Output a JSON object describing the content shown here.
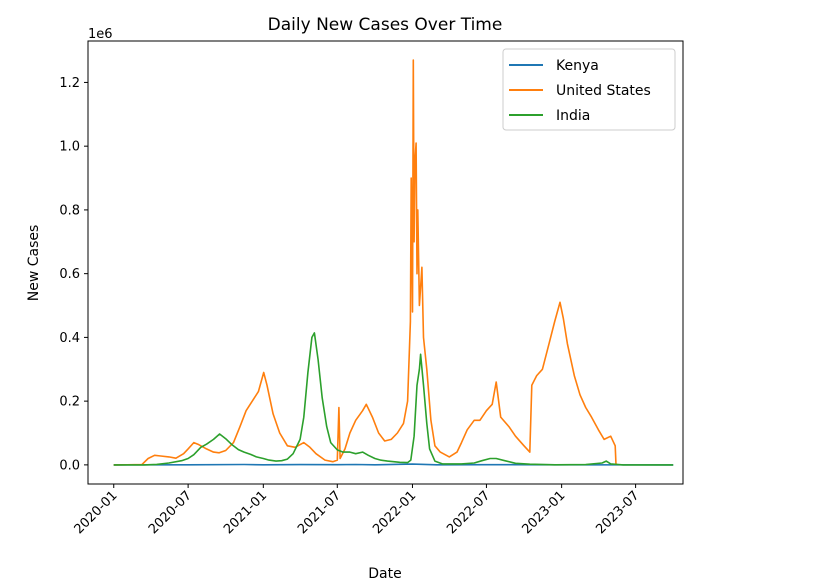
{
  "chart_data": {
    "type": "line",
    "title": "Daily New Cases Over Time",
    "xlabel": "Date",
    "ylabel": "New Cases",
    "y_offset_text": "1e6",
    "xlim": [
      "2019-10-30",
      "2023-10-25"
    ],
    "ylim": [
      -60000,
      1330000
    ],
    "x_ticks": [
      "2020-01",
      "2020-07",
      "2021-01",
      "2021-07",
      "2022-01",
      "2022-07",
      "2023-01",
      "2023-07"
    ],
    "y_ticks": [
      {
        "value": 0,
        "label": "0.0"
      },
      {
        "value": 200000,
        "label": "0.2"
      },
      {
        "value": 400000,
        "label": "0.4"
      },
      {
        "value": 600000,
        "label": "0.6"
      },
      {
        "value": 800000,
        "label": "0.8"
      },
      {
        "value": 1000000,
        "label": "1.0"
      },
      {
        "value": 1200000,
        "label": "1.2"
      }
    ],
    "grid": false,
    "legend_position": "top-right",
    "series": [
      {
        "name": "Kenya",
        "color": "#1f77b4",
        "points": [
          [
            "2020-01-01",
            0
          ],
          [
            "2020-07-01",
            300
          ],
          [
            "2020-11-15",
            1200
          ],
          [
            "2021-01-01",
            200
          ],
          [
            "2021-04-01",
            1000
          ],
          [
            "2021-07-01",
            500
          ],
          [
            "2021-08-15",
            1200
          ],
          [
            "2021-10-01",
            200
          ],
          [
            "2022-01-01",
            2500
          ],
          [
            "2022-03-01",
            100
          ],
          [
            "2022-07-01",
            500
          ],
          [
            "2023-01-01",
            100
          ],
          [
            "2023-10-01",
            0
          ]
        ]
      },
      {
        "name": "United States",
        "color": "#ff7f0e",
        "points": [
          [
            "2020-01-01",
            0
          ],
          [
            "2020-03-10",
            1000
          ],
          [
            "2020-03-25",
            20000
          ],
          [
            "2020-04-10",
            30000
          ],
          [
            "2020-04-25",
            28000
          ],
          [
            "2020-05-15",
            25000
          ],
          [
            "2020-06-01",
            21000
          ],
          [
            "2020-06-20",
            35000
          ],
          [
            "2020-07-01",
            50000
          ],
          [
            "2020-07-15",
            70000
          ],
          [
            "2020-07-25",
            65000
          ],
          [
            "2020-08-15",
            50000
          ],
          [
            "2020-09-01",
            40000
          ],
          [
            "2020-09-15",
            38000
          ],
          [
            "2020-10-01",
            45000
          ],
          [
            "2020-10-20",
            70000
          ],
          [
            "2020-11-05",
            120000
          ],
          [
            "2020-11-20",
            170000
          ],
          [
            "2020-12-05",
            200000
          ],
          [
            "2020-12-20",
            230000
          ],
          [
            "2021-01-02",
            290000
          ],
          [
            "2021-01-10",
            250000
          ],
          [
            "2021-01-25",
            160000
          ],
          [
            "2021-02-10",
            100000
          ],
          [
            "2021-03-01",
            60000
          ],
          [
            "2021-03-20",
            55000
          ],
          [
            "2021-04-10",
            70000
          ],
          [
            "2021-04-25",
            55000
          ],
          [
            "2021-05-10",
            35000
          ],
          [
            "2021-06-01",
            15000
          ],
          [
            "2021-06-20",
            10000
          ],
          [
            "2021-07-01",
            15000
          ],
          [
            "2021-07-05",
            180000
          ],
          [
            "2021-07-08",
            20000
          ],
          [
            "2021-07-20",
            50000
          ],
          [
            "2021-08-01",
            100000
          ],
          [
            "2021-08-15",
            140000
          ],
          [
            "2021-09-01",
            170000
          ],
          [
            "2021-09-10",
            190000
          ],
          [
            "2021-09-25",
            150000
          ],
          [
            "2021-10-10",
            100000
          ],
          [
            "2021-10-25",
            75000
          ],
          [
            "2021-11-10",
            80000
          ],
          [
            "2021-11-25",
            100000
          ],
          [
            "2021-12-10",
            130000
          ],
          [
            "2021-12-20",
            200000
          ],
          [
            "2021-12-27",
            450000
          ],
          [
            "2021-12-29",
            900000
          ],
          [
            "2022-01-01",
            480000
          ],
          [
            "2022-01-03",
            1270000
          ],
          [
            "2022-01-05",
            700000
          ],
          [
            "2022-01-07",
            950000
          ],
          [
            "2022-01-10",
            1010000
          ],
          [
            "2022-01-12",
            600000
          ],
          [
            "2022-01-14",
            800000
          ],
          [
            "2022-01-18",
            500000
          ],
          [
            "2022-01-24",
            620000
          ],
          [
            "2022-01-28",
            400000
          ],
          [
            "2022-02-05",
            300000
          ],
          [
            "2022-02-15",
            140000
          ],
          [
            "2022-02-25",
            60000
          ],
          [
            "2022-03-10",
            40000
          ],
          [
            "2022-04-01",
            25000
          ],
          [
            "2022-04-20",
            40000
          ],
          [
            "2022-05-01",
            70000
          ],
          [
            "2022-05-15",
            110000
          ],
          [
            "2022-06-01",
            140000
          ],
          [
            "2022-06-15",
            140000
          ],
          [
            "2022-07-01",
            170000
          ],
          [
            "2022-07-15",
            190000
          ],
          [
            "2022-07-25",
            260000
          ],
          [
            "2022-08-05",
            150000
          ],
          [
            "2022-08-25",
            120000
          ],
          [
            "2022-09-10",
            90000
          ],
          [
            "2022-10-01",
            60000
          ],
          [
            "2022-10-15",
            40000
          ],
          [
            "2022-10-20",
            250000
          ],
          [
            "2022-11-01",
            280000
          ],
          [
            "2022-11-15",
            300000
          ],
          [
            "2022-12-01",
            380000
          ],
          [
            "2022-12-15",
            450000
          ],
          [
            "2022-12-28",
            510000
          ],
          [
            "2023-01-05",
            460000
          ],
          [
            "2023-01-15",
            380000
          ],
          [
            "2023-02-01",
            280000
          ],
          [
            "2023-02-15",
            220000
          ],
          [
            "2023-03-01",
            180000
          ],
          [
            "2023-03-15",
            150000
          ],
          [
            "2023-04-01",
            110000
          ],
          [
            "2023-04-15",
            80000
          ],
          [
            "2023-05-01",
            90000
          ],
          [
            "2023-05-12",
            60000
          ],
          [
            "2023-05-14",
            0
          ]
        ]
      },
      {
        "name": "India",
        "color": "#2ca02c",
        "points": [
          [
            "2020-01-01",
            0
          ],
          [
            "2020-03-15",
            0
          ],
          [
            "2020-04-15",
            1500
          ],
          [
            "2020-05-15",
            6000
          ],
          [
            "2020-06-15",
            13000
          ],
          [
            "2020-07-01",
            20000
          ],
          [
            "2020-07-15",
            32000
          ],
          [
            "2020-08-01",
            55000
          ],
          [
            "2020-08-15",
            65000
          ],
          [
            "2020-09-01",
            80000
          ],
          [
            "2020-09-16",
            97000
          ],
          [
            "2020-10-01",
            82000
          ],
          [
            "2020-10-15",
            65000
          ],
          [
            "2020-11-01",
            48000
          ],
          [
            "2020-11-15",
            40000
          ],
          [
            "2020-12-01",
            33000
          ],
          [
            "2020-12-15",
            25000
          ],
          [
            "2021-01-01",
            20000
          ],
          [
            "2021-01-15",
            15000
          ],
          [
            "2021-02-01",
            12000
          ],
          [
            "2021-02-15",
            13000
          ],
          [
            "2021-03-01",
            18000
          ],
          [
            "2021-03-15",
            35000
          ],
          [
            "2021-04-01",
            80000
          ],
          [
            "2021-04-10",
            150000
          ],
          [
            "2021-04-20",
            290000
          ],
          [
            "2021-04-30",
            400000
          ],
          [
            "2021-05-06",
            414000
          ],
          [
            "2021-05-15",
            330000
          ],
          [
            "2021-05-25",
            210000
          ],
          [
            "2021-06-05",
            120000
          ],
          [
            "2021-06-15",
            70000
          ],
          [
            "2021-07-01",
            47000
          ],
          [
            "2021-07-15",
            40000
          ],
          [
            "2021-08-01",
            40000
          ],
          [
            "2021-08-15",
            35000
          ],
          [
            "2021-09-01",
            40000
          ],
          [
            "2021-09-15",
            30000
          ],
          [
            "2021-10-01",
            20000
          ],
          [
            "2021-10-15",
            15000
          ],
          [
            "2021-11-01",
            12000
          ],
          [
            "2021-12-01",
            8000
          ],
          [
            "2021-12-20",
            7000
          ],
          [
            "2021-12-28",
            15000
          ],
          [
            "2022-01-05",
            90000
          ],
          [
            "2022-01-12",
            250000
          ],
          [
            "2022-01-18",
            300000
          ],
          [
            "2022-01-21",
            347000
          ],
          [
            "2022-01-28",
            250000
          ],
          [
            "2022-02-05",
            130000
          ],
          [
            "2022-02-12",
            50000
          ],
          [
            "2022-02-25",
            12000
          ],
          [
            "2022-03-15",
            3000
          ],
          [
            "2022-05-01",
            3000
          ],
          [
            "2022-06-01",
            6000
          ],
          [
            "2022-06-20",
            13000
          ],
          [
            "2022-07-10",
            20000
          ],
          [
            "2022-07-25",
            20000
          ],
          [
            "2022-08-15",
            13000
          ],
          [
            "2022-09-10",
            5000
          ],
          [
            "2022-10-15",
            2000
          ],
          [
            "2022-12-15",
            200
          ],
          [
            "2023-03-01",
            1000
          ],
          [
            "2023-04-10",
            6000
          ],
          [
            "2023-04-20",
            12000
          ],
          [
            "2023-05-01",
            3000
          ],
          [
            "2023-06-01",
            0
          ],
          [
            "2023-10-01",
            0
          ]
        ]
      }
    ]
  }
}
